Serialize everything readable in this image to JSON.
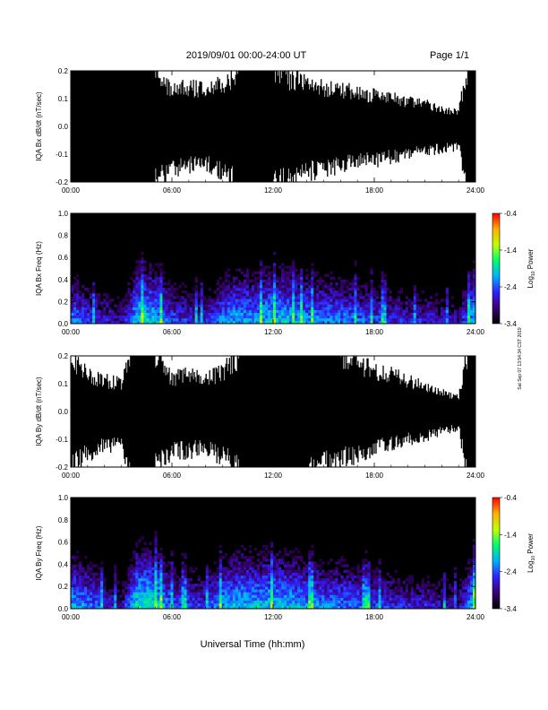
{
  "header": {
    "date_range": "2019/09/01   00:00-24:00 UT",
    "page": "Page 1/1"
  },
  "side_note": "Sat Sep 07 13:54:34 CST 2019",
  "x_axis": {
    "label": "Universal Time (hh:mm)",
    "ticks": [
      "00:00",
      "06:00",
      "12:00",
      "18:00",
      "24:00"
    ],
    "range_hours": [
      0,
      24
    ]
  },
  "colorbar": {
    "label_prefix": "Log",
    "label_sub": "10",
    "label_suffix": " Power",
    "ticks": [
      "-0.4",
      "-1.4",
      "-2.4",
      "-3.4"
    ],
    "range": [
      -3.4,
      -0.4
    ],
    "colors": [
      "#000000",
      "#3a0070",
      "#3020ff",
      "#00b0ff",
      "#00ff70",
      "#c0ff00",
      "#ffb000",
      "#ff0000"
    ]
  },
  "chart_data": [
    {
      "type": "area",
      "title": "",
      "ylabel": "IQA Bx dB/dt (nT/sec)",
      "ylim": [
        -0.2,
        0.2
      ],
      "y_ticks": [
        "0.2",
        "0.1",
        "0.0",
        "-0.1",
        "-0.2"
      ],
      "x_unit": "hours UT",
      "series": [
        {
          "x": [
            0,
            1,
            2,
            3,
            3.5,
            4,
            5,
            6,
            7,
            8,
            9,
            10,
            11,
            12,
            13,
            14,
            15,
            16,
            17,
            18,
            19,
            20,
            21,
            22,
            23,
            23.5,
            24
          ],
          "upper": [
            0.2,
            0.2,
            0.2,
            0.2,
            0.2,
            0.2,
            0.2,
            0.13,
            0.14,
            0.13,
            0.15,
            0.2,
            0.2,
            0.2,
            0.17,
            0.15,
            0.14,
            0.13,
            0.12,
            0.11,
            0.1,
            0.09,
            0.08,
            0.06,
            0.05,
            0.2,
            0.2
          ],
          "lower": [
            -0.2,
            -0.2,
            -0.2,
            -0.2,
            -0.2,
            -0.2,
            -0.2,
            -0.15,
            -0.14,
            -0.13,
            -0.17,
            -0.2,
            -0.2,
            -0.2,
            -0.18,
            -0.16,
            -0.15,
            -0.14,
            -0.13,
            -0.12,
            -0.11,
            -0.1,
            -0.09,
            -0.08,
            -0.07,
            -0.2,
            -0.2
          ]
        }
      ]
    },
    {
      "type": "heatmap",
      "title": "",
      "ylabel": "IQA Bx Freq (Hz)",
      "ylim": [
        0.0,
        1.0
      ],
      "y_ticks": [
        "1.0",
        "0.8",
        "0.6",
        "0.4",
        "0.2",
        "0.0"
      ],
      "z_range": [
        -3.4,
        -0.4
      ],
      "active_hours_x": [
        0,
        1,
        2,
        3,
        4,
        5,
        6,
        7,
        8,
        9,
        10,
        11,
        12,
        13,
        14,
        15,
        16,
        17,
        18,
        19,
        20,
        21,
        22,
        23,
        24
      ],
      "low_freq_power": [
        -2.2,
        -2.4,
        -2.6,
        -2.8,
        -1.8,
        -1.9,
        -2.4,
        -2.5,
        -2.6,
        -2.2,
        -2.0,
        -2.1,
        -1.9,
        -2.0,
        -2.1,
        -2.2,
        -2.2,
        -2.3,
        -2.4,
        -2.5,
        -2.6,
        -2.6,
        -2.7,
        -2.8,
        -1.8
      ]
    },
    {
      "type": "area",
      "title": "",
      "ylabel": "IQA By dB/dt (nT/sec)",
      "ylim": [
        -0.2,
        0.2
      ],
      "y_ticks": [
        "0.2",
        "0.1",
        "0.0",
        "-0.1",
        "-0.2"
      ],
      "x_unit": "hours UT",
      "series": [
        {
          "x": [
            0,
            1,
            2,
            3,
            3.5,
            4,
            5,
            6,
            7,
            8,
            9,
            10,
            11,
            12,
            13,
            14,
            15,
            16,
            17,
            18,
            19,
            20,
            21,
            22,
            23,
            23.5,
            24
          ],
          "upper": [
            0.18,
            0.13,
            0.11,
            0.1,
            0.2,
            0.2,
            0.2,
            0.12,
            0.13,
            0.12,
            0.14,
            0.2,
            0.2,
            0.2,
            0.2,
            0.2,
            0.2,
            0.2,
            0.17,
            0.15,
            0.13,
            0.11,
            0.09,
            0.07,
            0.05,
            0.2,
            0.2
          ],
          "lower": [
            -0.2,
            -0.15,
            -0.12,
            -0.12,
            -0.2,
            -0.2,
            -0.2,
            -0.14,
            -0.14,
            -0.13,
            -0.16,
            -0.2,
            -0.2,
            -0.2,
            -0.2,
            -0.2,
            -0.19,
            -0.17,
            -0.15,
            -0.13,
            -0.12,
            -0.1,
            -0.09,
            -0.07,
            -0.06,
            -0.2,
            -0.2
          ]
        }
      ]
    },
    {
      "type": "heatmap",
      "title": "",
      "ylabel": "IQA By Freq (Hz)",
      "ylim": [
        0.0,
        1.0
      ],
      "y_ticks": [
        "1.0",
        "0.8",
        "0.6",
        "0.4",
        "0.2",
        "0.0"
      ],
      "z_range": [
        -3.4,
        -0.4
      ],
      "active_hours_x": [
        0,
        1,
        2,
        3,
        4,
        5,
        6,
        7,
        8,
        9,
        10,
        11,
        12,
        13,
        14,
        15,
        16,
        17,
        18,
        19,
        20,
        21,
        22,
        23,
        24
      ],
      "low_freq_power": [
        -2.0,
        -2.2,
        -2.5,
        -2.8,
        -1.7,
        -1.8,
        -2.3,
        -2.4,
        -2.5,
        -2.1,
        -1.9,
        -2.0,
        -1.9,
        -2.0,
        -2.1,
        -2.2,
        -2.2,
        -2.3,
        -2.4,
        -2.5,
        -2.6,
        -2.6,
        -2.7,
        -2.8,
        -1.8
      ]
    }
  ]
}
